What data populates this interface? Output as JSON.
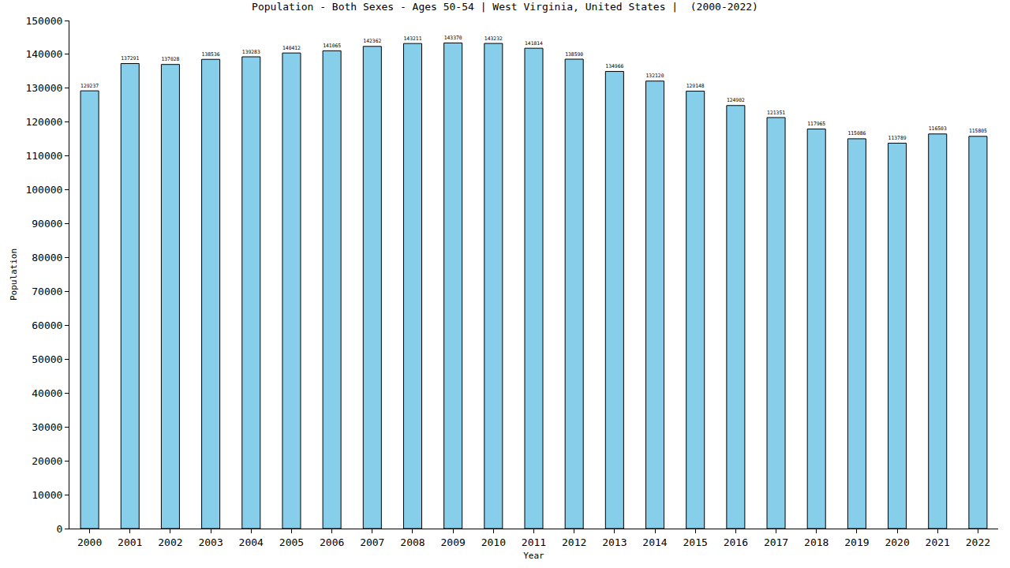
{
  "chart_data": {
    "type": "bar",
    "title": "Population - Both Sexes - Ages 50-54 | West Virginia, United States |  (2000-2022)",
    "x_label": "Year",
    "y_label": "Population",
    "categories": [
      "2000",
      "2001",
      "2002",
      "2003",
      "2004",
      "2005",
      "2006",
      "2007",
      "2008",
      "2009",
      "2010",
      "2011",
      "2012",
      "2013",
      "2014",
      "2015",
      "2016",
      "2017",
      "2018",
      "2019",
      "2020",
      "2021",
      "2022"
    ],
    "values": [
      129237,
      137291,
      137028,
      138536,
      139283,
      140412,
      141065,
      142362,
      143211,
      143370,
      143232,
      141814,
      138590,
      134966,
      132120,
      129148,
      124902,
      121351,
      117965,
      115086,
      113789,
      116503,
      115805
    ],
    "color": "#87ceeb",
    "ylim": [
      0,
      150000
    ],
    "yticks": [
      0,
      10000,
      20000,
      30000,
      40000,
      50000,
      60000,
      70000,
      80000,
      90000,
      100000,
      110000,
      120000,
      130000,
      140000,
      150000
    ],
    "grid": false,
    "data_labels": true
  }
}
